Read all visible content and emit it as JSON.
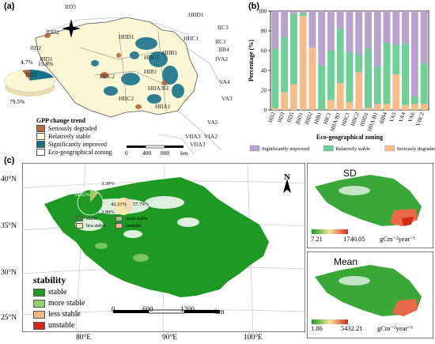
{
  "panel_a": {
    "label": "(a)",
    "zones": [
      "IID5",
      "IID2",
      "IID3",
      "IIID1",
      "IIID2",
      "HIID1",
      "HIID1",
      "HIIC1",
      "HIIC1",
      "HIIC2",
      "HIB1",
      "HIIB1",
      "HIIA/B1",
      "HIIC2",
      "HIIA1",
      "IIC3",
      "IIC1",
      "IIB4",
      "IVA2",
      "VA4",
      "VA3",
      "VA5",
      "VIIA3",
      "VIA2",
      "VIIA3"
    ],
    "pie_values": [
      "4.7%",
      "15.8%",
      "79.5%"
    ],
    "legend_title": "GPP change trend",
    "legend_items": [
      {
        "label": "Seriously degraded",
        "color": "#e8a86b"
      },
      {
        "label": "Relatively stable",
        "color": "#fbf6d4"
      },
      {
        "label": "Significantly improved",
        "color": "#17738a"
      },
      {
        "label": "Eco-geographical zoning",
        "color": "#ffffff"
      }
    ],
    "scale_labels": [
      "0",
      "400",
      "800",
      "km"
    ]
  },
  "panel_b": {
    "label": "(b)",
    "y_ticks": [
      "100",
      "80",
      "60",
      "40",
      "20",
      "0"
    ]
  },
  "panel_c": {
    "label": "(c)",
    "lat_labels": [
      "40°N",
      "35°N",
      "30°N",
      "25°N"
    ],
    "lon_labels": [
      "80°E",
      "90°E",
      "100°E"
    ],
    "north": "N",
    "pie_labels": [
      "54.62%",
      "3.39%",
      "3.99%",
      "42.21%",
      "57.79%"
    ],
    "pie_legend": [
      "stable",
      "more stable",
      "less stable",
      "unstable"
    ],
    "stability_title": "stability",
    "stability_items": [
      {
        "label": "stable",
        "color": "#1e9a24"
      },
      {
        "label": "more stable",
        "color": "#8fd16a"
      },
      {
        "label": "less stable",
        "color": "#f0b47e"
      },
      {
        "label": "unstable",
        "color": "#d8281e"
      }
    ],
    "scale_labels": [
      "0",
      "600",
      "1200",
      "km"
    ],
    "sd": {
      "title": "SD",
      "min": "7.21",
      "max": "1740.05",
      "unit": "gCm⁻²year⁻¹"
    },
    "mean": {
      "title": "Mean",
      "min": "1.86",
      "max": "5432.21",
      "unit": "gCm⁻²year⁻¹"
    }
  },
  "chart_data": {
    "type": "bar",
    "stacked": true,
    "ylabel": "Percentage (%)",
    "xlabel": "Eco-geographical zoning",
    "ylim": [
      0,
      100
    ],
    "categories": [
      "IID2",
      "IID3",
      "IID5",
      "IIID1",
      "IIID2",
      "HIB1",
      "HIC1",
      "HIIA/B1",
      "HIIC1",
      "HIIC2",
      "HIID1",
      "HIIA/B1",
      "IIIB4",
      "VA5",
      "VA4",
      "VA6",
      "VIIC2"
    ],
    "series": [
      {
        "name": "Significantly improved",
        "color": "#b9a3cc",
        "values": [
          38,
          26,
          3,
          2,
          37,
          55,
          40,
          18,
          42,
          44,
          38,
          56,
          32,
          34,
          33,
          86,
          53
        ]
      },
      {
        "name": "Relatively stable",
        "color": "#6fcf97",
        "values": [
          60,
          56,
          71,
          3,
          0,
          45,
          50,
          55,
          50,
          18,
          60,
          38,
          62,
          30,
          62,
          8,
          41
        ]
      },
      {
        "name": "Seriously degraded",
        "color": "#f6bd86",
        "values": [
          2,
          18,
          26,
          95,
          63,
          0,
          10,
          27,
          8,
          38,
          2,
          6,
          6,
          36,
          5,
          6,
          6
        ]
      }
    ],
    "legend_position": "bottom"
  }
}
